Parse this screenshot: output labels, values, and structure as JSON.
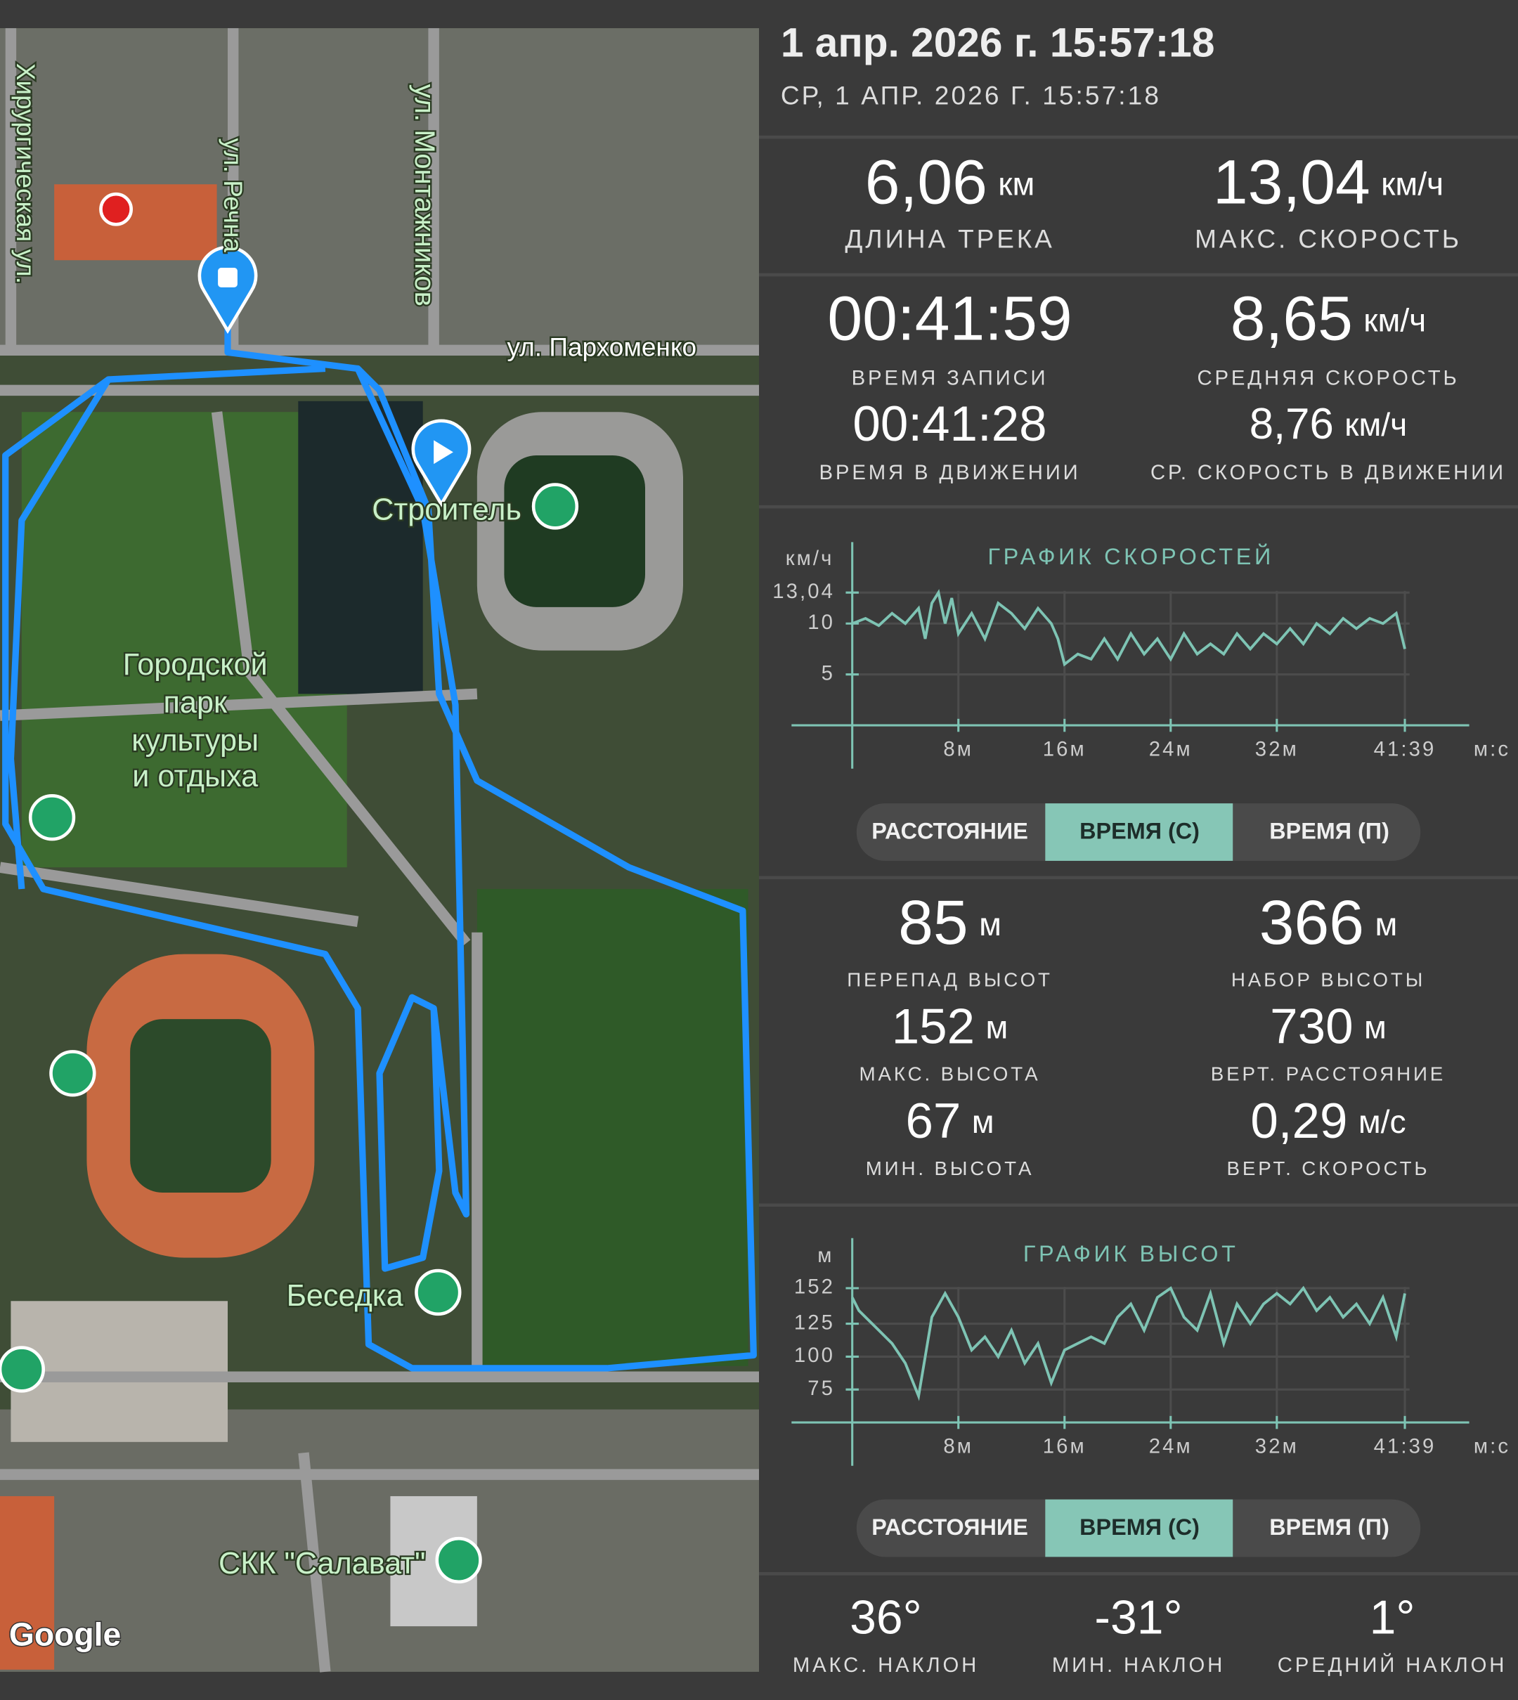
{
  "header": {
    "title": "1 апр. 2026 г. 15:57:18",
    "subtitle": "СР, 1 АПР. 2026 Г. 15:57:18"
  },
  "stats_top": [
    {
      "value": "6,06",
      "unit": "км",
      "label": "ДЛИНА ТРЕКА"
    },
    {
      "value": "13,04",
      "unit": "км/ч",
      "label": "МАКС. СКОРОСТЬ"
    }
  ],
  "stats_time": [
    {
      "value": "00:41:59",
      "label": "ВРЕМЯ ЗАПИСИ"
    },
    {
      "value": "8,65",
      "unit": "км/ч",
      "label": "СРЕДНЯЯ СКОРОСТЬ"
    },
    {
      "value": "00:41:28",
      "label": "ВРЕМЯ В ДВИЖЕНИИ"
    },
    {
      "value": "8,76",
      "unit": "км/ч",
      "label": "СР. СКОРОСТЬ В ДВИЖЕНИИ"
    }
  ],
  "tabs_speed": [
    "РАССТОЯНИЕ",
    "ВРЕМЯ (С)",
    "ВРЕМЯ (П)"
  ],
  "stats_alt": [
    {
      "value": "85",
      "unit": "м",
      "label": "ПЕРЕПАД ВЫСОТ"
    },
    {
      "value": "366",
      "unit": "м",
      "label": "НАБОР ВЫСОТЫ"
    },
    {
      "value": "152",
      "unit": "м",
      "label": "МАКС. ВЫСОТА"
    },
    {
      "value": "730",
      "unit": "м",
      "label": "ВЕРТ. РАССТОЯНИЕ"
    },
    {
      "value": "67",
      "unit": "м",
      "label": "МИН. ВЫСОТА"
    },
    {
      "value": "0,29",
      "unit": "м/с",
      "label": "ВЕРТ. СКОРОСТЬ"
    }
  ],
  "tabs_alt": [
    "РАССТОЯНИЕ",
    "ВРЕМЯ (С)",
    "ВРЕМЯ (П)"
  ],
  "stats_slope": [
    {
      "value": "36°",
      "label": "МАКС. НАКЛОН"
    },
    {
      "value": "-31°",
      "label": "МИН. НАКЛОН"
    },
    {
      "value": "1°",
      "label": "СРЕДНИЙ НАКЛОН"
    }
  ],
  "map": {
    "labels": [
      "Хирургическая ул.",
      "ул. Речна",
      "ул. Монтажников",
      "ул. Пархоменко",
      "Строитель",
      "Городской",
      "парк",
      "культуры",
      "и отдыха",
      "Беседка",
      "СКК \"Салават\"",
      "Google"
    ]
  },
  "chart_data": [
    {
      "type": "line",
      "title": "ГРАФИК СКОРОСТЕЙ",
      "y_label": "км/ч",
      "x_label": "м:с",
      "color": "#7ec4b4",
      "xlim": [
        0,
        46.5
      ],
      "ylim": [
        0,
        18
      ],
      "xticks": [
        {
          "value": 8,
          "label": "8м"
        },
        {
          "value": 16,
          "label": "16м"
        },
        {
          "value": 24,
          "label": "24м"
        },
        {
          "value": 32,
          "label": "32м"
        },
        {
          "value": 41.65,
          "label": "41:39"
        }
      ],
      "yticks": [
        5,
        10,
        {
          "value": 13.04,
          "label": "13,04"
        }
      ],
      "x": [
        0,
        1,
        2,
        3,
        4,
        5,
        5.5,
        6,
        6.5,
        7,
        7.5,
        8,
        9,
        10,
        11,
        12,
        13,
        14,
        15,
        15.5,
        16,
        17,
        18,
        19,
        20,
        21,
        22,
        23,
        24,
        25,
        26,
        27,
        28,
        29,
        30,
        31,
        32,
        33,
        34,
        35,
        36,
        37,
        38,
        39,
        40,
        41,
        41.65
      ],
      "values": [
        10,
        10.5,
        9.8,
        11,
        10,
        11.5,
        8.5,
        12,
        13.04,
        10,
        12.5,
        9,
        11,
        8.5,
        12,
        11,
        9.5,
        11.5,
        10,
        8.5,
        6,
        7,
        6.5,
        8.5,
        6.5,
        9,
        7,
        8.5,
        6.5,
        9,
        7,
        8,
        7,
        9,
        7.5,
        9,
        8,
        9.5,
        8,
        10,
        9,
        10.5,
        9.5,
        10.5,
        10,
        11,
        7.5
      ]
    },
    {
      "type": "line",
      "title": "ГРАФИК ВЫСОТ",
      "y_label": "м",
      "x_label": "м:с",
      "color": "#7ec4b4",
      "xlim": [
        0,
        46.5
      ],
      "ylim": [
        50,
        190
      ],
      "xticks": [
        {
          "value": 8,
          "label": "8м"
        },
        {
          "value": 16,
          "label": "16м"
        },
        {
          "value": 24,
          "label": "24м"
        },
        {
          "value": 32,
          "label": "32м"
        },
        {
          "value": 41.65,
          "label": "41:39"
        }
      ],
      "yticks": [
        75,
        100,
        125,
        152
      ],
      "x": [
        0,
        0.5,
        1,
        2,
        3,
        4,
        5,
        5.5,
        6,
        7,
        8,
        9,
        10,
        11,
        12,
        13,
        14,
        15,
        16,
        17,
        18,
        19,
        20,
        21,
        22,
        23,
        24,
        25,
        26,
        27,
        28,
        29,
        30,
        31,
        32,
        33,
        34,
        35,
        36,
        37,
        38,
        39,
        40,
        41,
        41.65
      ],
      "values": [
        145,
        135,
        130,
        120,
        110,
        95,
        70,
        100,
        130,
        148,
        130,
        105,
        115,
        100,
        120,
        95,
        110,
        80,
        105,
        110,
        115,
        110,
        130,
        140,
        120,
        145,
        152,
        130,
        120,
        148,
        110,
        140,
        125,
        140,
        148,
        140,
        152,
        135,
        145,
        130,
        140,
        125,
        145,
        115,
        148
      ]
    }
  ]
}
